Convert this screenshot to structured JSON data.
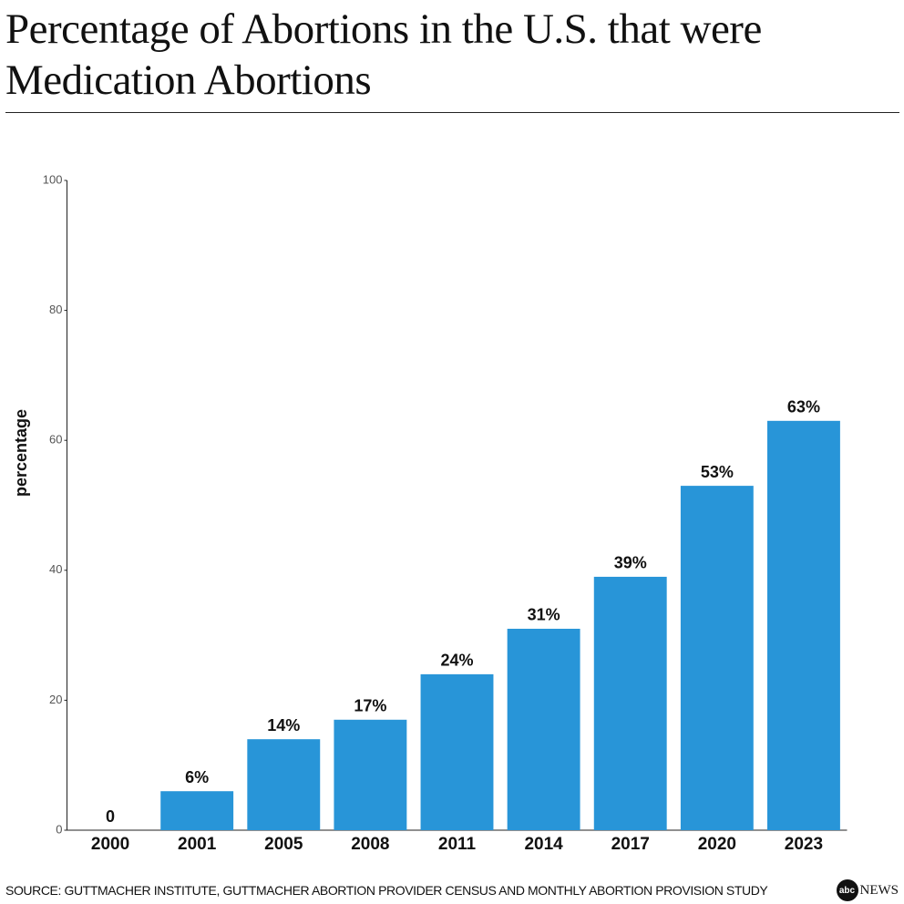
{
  "chart_data": {
    "type": "bar",
    "title": "Percentage of Abortions in the U.S. that were Medication Abortions",
    "y_label": "percentage",
    "categories": [
      "2000",
      "2001",
      "2005",
      "2008",
      "2011",
      "2014",
      "2017",
      "2020",
      "2023"
    ],
    "values": [
      0,
      6,
      14,
      17,
      24,
      31,
      39,
      53,
      63
    ],
    "value_labels": [
      "0",
      "6%",
      "14%",
      "17%",
      "24%",
      "31%",
      "39%",
      "53%",
      "63%"
    ],
    "color": "#2895d8",
    "ylim": [
      0,
      100
    ],
    "yticks": [
      0,
      20,
      40,
      60,
      80,
      100
    ],
    "grid": false,
    "source": "SOURCE: GUTTMACHER INSTITUTE, GUTTMACHER ABORTION PROVIDER CENSUS AND MONTHLY ABORTION PROVISION STUDY",
    "brand": {
      "mark": "abc",
      "name": "NEWS"
    }
  }
}
